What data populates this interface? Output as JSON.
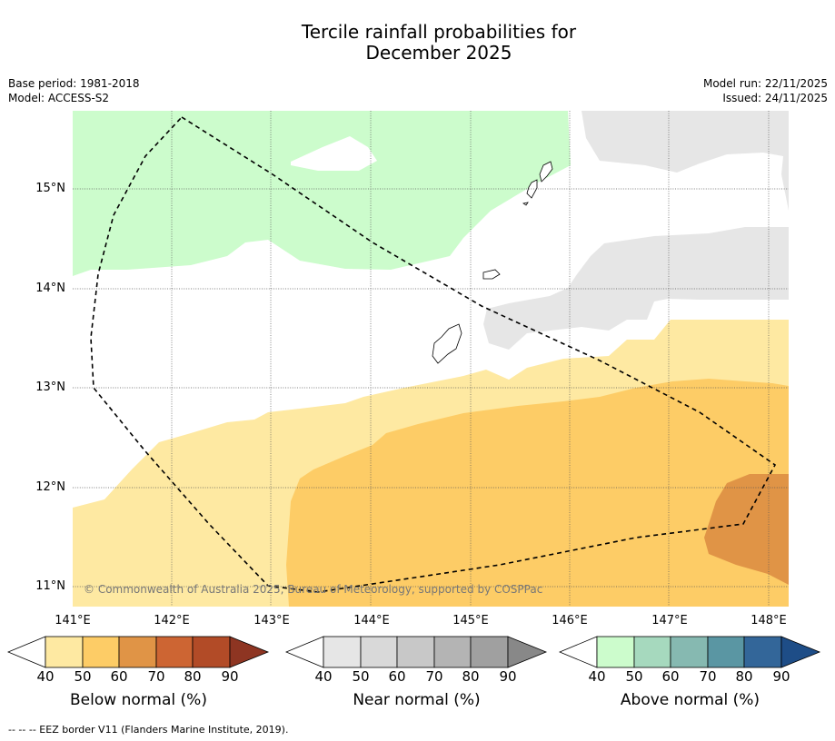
{
  "title_line1": "Tercile rainfall probabilities for",
  "title_line2": "December 2025",
  "base_period": "Base period: 1981-2018",
  "model": "Model: ACCESS-S2",
  "model_run": "Model run: 22/11/2025",
  "issued": "Issued: 24/11/2025",
  "copyright": "© Commonwealth of Australia 2025, Bureau of Meteorology, supported by COSPPac",
  "footer": "--  --  -- EEZ border V11 (Flanders Marine Institute, 2019).",
  "axes": {
    "x_ticks": [
      "141°E",
      "142°E",
      "143°E",
      "144°E",
      "145°E",
      "146°E",
      "147°E",
      "148°E"
    ],
    "y_ticks": [
      "15°N",
      "14°N",
      "13°N",
      "12°N",
      "11°N"
    ]
  },
  "colorbars": [
    {
      "label": "Below normal (%)",
      "ticks": [
        "40",
        "50",
        "60",
        "70",
        "80",
        "90"
      ],
      "colors": [
        "#fee9a2",
        "#fdcc66",
        "#e09446",
        "#cd6533",
        "#b24b27",
        "#8e3522"
      ]
    },
    {
      "label": "Near normal (%)",
      "ticks": [
        "40",
        "50",
        "60",
        "70",
        "80",
        "90"
      ],
      "colors": [
        "#e6e6e6",
        "#d9d9d9",
        "#c8c8c8",
        "#b4b4b4",
        "#a0a0a0",
        "#888888"
      ]
    },
    {
      "label": "Above normal (%)",
      "ticks": [
        "40",
        "50",
        "60",
        "70",
        "80",
        "90"
      ],
      "colors": [
        "#ccfccc",
        "#a6d9be",
        "#86b9b1",
        "#5a96a3",
        "#336699",
        "#1e4d87"
      ]
    }
  ]
}
